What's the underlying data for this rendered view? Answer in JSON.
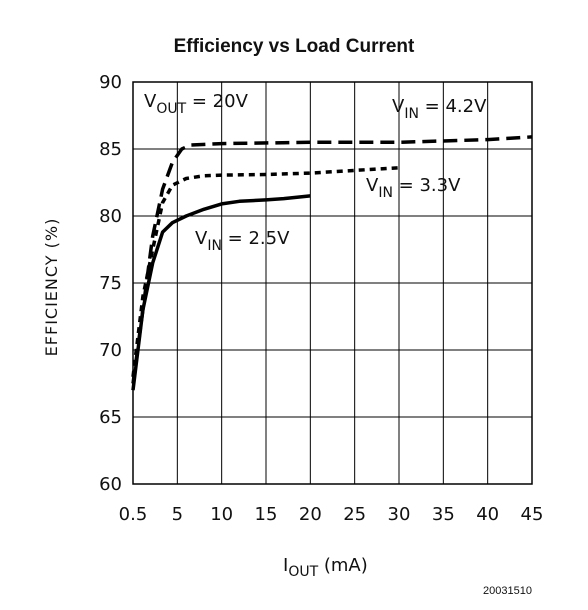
{
  "chart_data": {
    "type": "line",
    "title": "Efficiency vs Load Current",
    "xlabel": {
      "main": "I",
      "sub": "OUT",
      "rest": " (mA)"
    },
    "ylabel": "EFFICIENCY (%)",
    "x_ticks": [
      "0.5",
      "5",
      "10",
      "15",
      "20",
      "25",
      "30",
      "35",
      "40",
      "45"
    ],
    "x_tick_values": [
      0.5,
      5,
      10,
      15,
      20,
      25,
      30,
      35,
      40,
      45
    ],
    "y_ticks": [
      "60",
      "65",
      "70",
      "75",
      "80",
      "85",
      "90"
    ],
    "y_tick_values": [
      60,
      65,
      70,
      75,
      80,
      85,
      90
    ],
    "xlim": [
      0.5,
      45
    ],
    "ylim": [
      60,
      90
    ],
    "grid": true,
    "annotations": {
      "vout": {
        "main": "V",
        "sub": "OUT",
        "rest": " = 20V"
      },
      "vin42": {
        "main": "V",
        "sub": "IN",
        "rest": " = 4.2V"
      },
      "vin33": {
        "main": "V",
        "sub": "IN",
        "rest": " = 3.3V"
      },
      "vin25": {
        "main": "V",
        "sub": "IN",
        "rest": " = 2.5V"
      }
    },
    "series": [
      {
        "name": "VIN = 4.2V",
        "style": "dashed",
        "x": [
          0.5,
          1.5,
          2.5,
          3.5,
          4.5,
          5.5,
          6.5,
          10,
          20,
          30,
          40,
          45
        ],
        "y": [
          67.5,
          73,
          78.5,
          82,
          84,
          85,
          85.3,
          85.4,
          85.5,
          85.5,
          85.7,
          85.9
        ]
      },
      {
        "name": "VIN = 3.3V",
        "style": "dotted",
        "x": [
          0.5,
          1.5,
          2.5,
          3.5,
          4.5,
          6,
          8,
          10,
          15,
          20,
          25,
          30
        ],
        "y": [
          68,
          74,
          77.5,
          81,
          82.3,
          82.8,
          83,
          83.05,
          83.1,
          83.2,
          83.4,
          83.6
        ]
      },
      {
        "name": "VIN = 2.5V",
        "style": "solid",
        "x": [
          0.5,
          1.5,
          2.5,
          3.5,
          4.5,
          6,
          8,
          10,
          12,
          15,
          17,
          20
        ],
        "y": [
          67,
          73,
          76.5,
          78.8,
          79.5,
          80,
          80.5,
          80.9,
          81.1,
          81.2,
          81.3,
          81.5
        ]
      }
    ]
  },
  "figure_id": "20031510"
}
